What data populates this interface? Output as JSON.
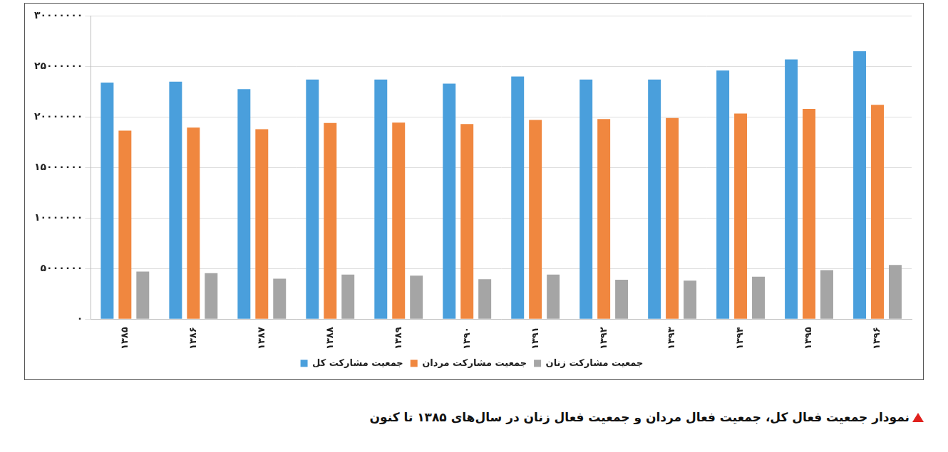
{
  "chart_data": {
    "type": "bar",
    "title": "نمودار جمعیت فعال کل، جمعیت فعال مردان و جمعیت فعال زنان در سال‌های ۱۳۸۵ تا کنون",
    "categories": [
      "۱۳۸۵",
      "۱۳۸۶",
      "۱۳۸۷",
      "۱۳۸۸",
      "۱۳۸۹",
      "۱۳۹۰",
      "۱۳۹۱",
      "۱۳۹۲",
      "۱۳۹۳",
      "۱۳۹۴",
      "۱۳۹۵",
      "۱۳۹۶"
    ],
    "series": [
      {
        "name": "جمعیت مشارکت کل",
        "color": "#4a9fdc",
        "values": [
          23400000,
          23500000,
          22750000,
          23700000,
          23700000,
          23300000,
          24000000,
          23700000,
          23700000,
          24600000,
          25700000,
          26500000
        ]
      },
      {
        "name": "جمعیت مشارکت مردان",
        "color": "#f0873f",
        "values": [
          18650000,
          18950000,
          18800000,
          19400000,
          19450000,
          19300000,
          19700000,
          19800000,
          19900000,
          20350000,
          20800000,
          21200000
        ]
      },
      {
        "name": "جمعیت مشارکت زنان",
        "color": "#a5a5a5",
        "values": [
          4700000,
          4550000,
          4000000,
          4400000,
          4300000,
          3950000,
          4400000,
          3900000,
          3800000,
          4200000,
          4850000,
          5350000
        ]
      }
    ],
    "ylim": [
      0,
      30000000
    ],
    "yticks": [
      {
        "value": 0,
        "label": "۰"
      },
      {
        "value": 5000000,
        "label": "۵۰۰۰۰۰۰"
      },
      {
        "value": 10000000,
        "label": "۱۰۰۰۰۰۰۰"
      },
      {
        "value": 15000000,
        "label": "۱۵۰۰۰۰۰۰"
      },
      {
        "value": 20000000,
        "label": "۲۰۰۰۰۰۰۰"
      },
      {
        "value": 25000000,
        "label": "۲۵۰۰۰۰۰۰"
      },
      {
        "value": 30000000,
        "label": "۳۰۰۰۰۰۰۰"
      }
    ],
    "grid": true,
    "legend": "bottom"
  }
}
